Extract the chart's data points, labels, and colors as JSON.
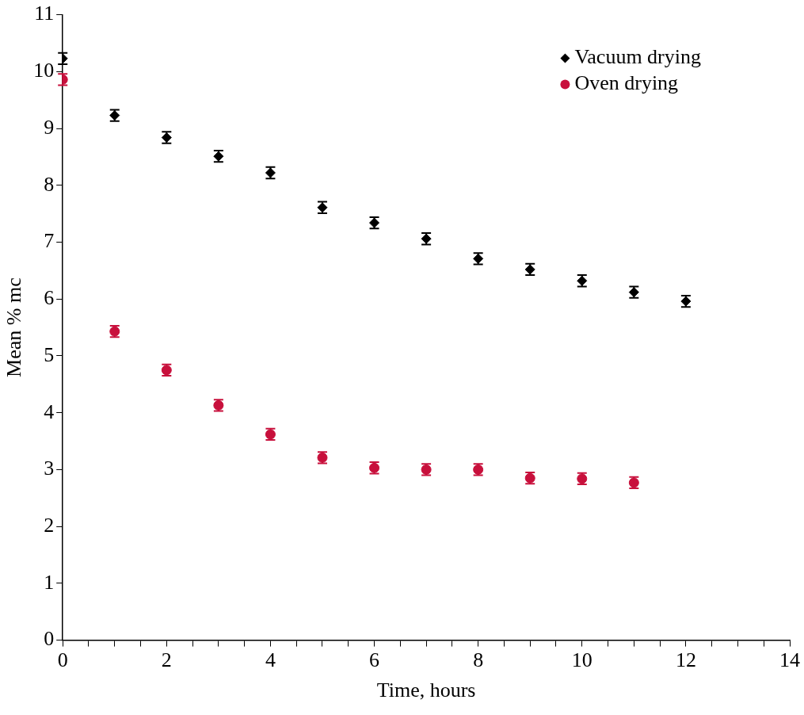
{
  "chart_data": {
    "type": "scatter",
    "xlabel": "Time, hours",
    "ylabel": "Mean % mc",
    "x": [
      0,
      1,
      2,
      3,
      4,
      5,
      6,
      7,
      8,
      9,
      10,
      11,
      12
    ],
    "series": [
      {
        "name": "Vacuum drying",
        "color": "#000000",
        "values": [
          10.23,
          9.23,
          8.84,
          8.51,
          8.22,
          7.61,
          7.34,
          7.06,
          6.71,
          6.52,
          6.32,
          6.12,
          5.96
        ],
        "errors": [
          0.1,
          0.1,
          0.1,
          0.1,
          0.1,
          0.1,
          0.1,
          0.1,
          0.1,
          0.1,
          0.1,
          0.1,
          0.1
        ]
      },
      {
        "name": "Oven drying",
        "color": "#c8103c",
        "marker": "circle",
        "values": [
          9.86,
          5.43,
          4.75,
          4.13,
          3.62,
          3.21,
          3.03,
          3.0,
          3.0,
          2.85,
          2.84,
          2.77,
          null
        ],
        "errors": [
          0.1,
          0.1,
          0.1,
          0.1,
          0.1,
          0.1,
          0.1,
          0.1,
          0.1,
          0.1,
          0.1,
          0.1,
          null
        ]
      }
    ],
    "xlim": [
      0,
      14
    ],
    "xticks": [
      0,
      {
        "value": 0.5,
        "label": null
      },
      {
        "value": 1,
        "label": null
      },
      {
        "value": 1.5,
        "label": null
      },
      2,
      {
        "value": 2.5,
        "label": null
      },
      {
        "value": 3,
        "label": null
      },
      {
        "value": 3.5,
        "label": null
      },
      4,
      {
        "value": 4.5,
        "label": null
      },
      {
        "value": 5,
        "label": null
      },
      {
        "value": 5.5,
        "label": null
      },
      6,
      {
        "value": 6.5,
        "label": null
      },
      {
        "value": 7,
        "label": null
      },
      {
        "value": 7.5,
        "label": null
      },
      8,
      {
        "value": 8.5,
        "label": null
      },
      {
        "value": 9,
        "label": null
      },
      {
        "value": 9.5,
        "label": null
      },
      10,
      {
        "value": 10.5,
        "label": null
      },
      {
        "value": 11,
        "label": null
      },
      {
        "value": 11.5,
        "label": null
      },
      12,
      {
        "value": 12.5,
        "label": null
      },
      {
        "value": 13,
        "label": null
      },
      {
        "value": 13.5,
        "label": null
      },
      14
    ],
    "ylim": [
      0,
      11
    ],
    "yticks": [
      0,
      1,
      2,
      3,
      4,
      5,
      6,
      7,
      8,
      9,
      10,
      11
    ],
    "grid": false,
    "legend": "top right",
    "marker": "diamond"
  }
}
